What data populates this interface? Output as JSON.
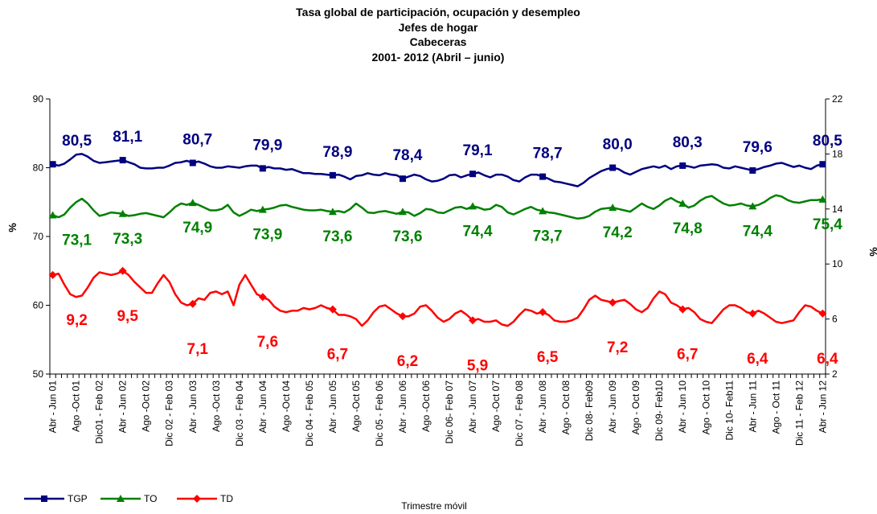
{
  "chart_data": {
    "type": "line",
    "title_lines": [
      "Tasa global de participación, ocupación y desempleo",
      "Jefes de hogar",
      "Cabeceras",
      "2001- 2012 (Abril – junio)"
    ],
    "xlabel": "Trimestre móvil",
    "ylabel": "%",
    "y2label": "%",
    "ylim": [
      50,
      90
    ],
    "yticks": [
      50,
      60,
      70,
      80,
      90
    ],
    "y2lim": [
      2,
      22
    ],
    "y2ticks": [
      2,
      6,
      10,
      14,
      18,
      22
    ],
    "grid": false,
    "legend": "bottom-left",
    "categories": [
      "Abr - Jun 01",
      null,
      null,
      null,
      "Ago -Oct 01",
      null,
      null,
      null,
      "Dic01 - Feb 02",
      null,
      null,
      null,
      "Abr - Jun 02",
      null,
      null,
      null,
      "Ago -Oct 02",
      null,
      null,
      null,
      "Dic 02 - Feb 03",
      null,
      null,
      null,
      "Abr - Jun 03",
      null,
      null,
      null,
      "Ago -Oct 03",
      null,
      null,
      null,
      "Dic 03 - Feb 04",
      null,
      null,
      null,
      "Abr - Jun 04",
      null,
      null,
      null,
      "Ago -Oct 04",
      null,
      null,
      null,
      "Dic 04 - Feb 05",
      null,
      null,
      null,
      "Abr - Jun 05",
      null,
      null,
      null,
      "Ago -Oct 05",
      null,
      null,
      null,
      "Dic 05 - Feb 06",
      null,
      null,
      null,
      "Abr - Jun 06",
      null,
      null,
      null,
      "Ago -Oct 06",
      null,
      null,
      null,
      "Dic  06- Feb 07",
      null,
      null,
      null,
      "Abr - Jun 07",
      null,
      null,
      null,
      "Ago -Oct 07",
      null,
      null,
      null,
      "Dic 07 - Feb 08",
      null,
      null,
      null,
      "Abr - Jun 08",
      null,
      null,
      null,
      "Ago - Oct 08",
      null,
      null,
      null,
      "Dic 08- Feb09",
      null,
      null,
      null,
      "Abr - Jun 09",
      null,
      null,
      null,
      "Ago - Oct 09",
      null,
      null,
      null,
      "Dic 09- Feb10",
      null,
      null,
      null,
      "Abr - Jun 10",
      null,
      null,
      null,
      "Ago - Oct 10",
      null,
      null,
      null,
      "Dic 10- Feb11",
      null,
      null,
      null,
      "Abr - Jun 11",
      null,
      null,
      null,
      "Ago - Oct 11",
      null,
      null,
      null,
      "Dic 11 - Feb 12",
      null,
      null,
      null,
      "Abr - Jun 12"
    ],
    "series": [
      {
        "name": "TGP",
        "color": "#000080",
        "marker": "square",
        "label_side": "above",
        "values": [
          80.5,
          80.3,
          80.6,
          81.2,
          81.9,
          82.0,
          81.6,
          81.0,
          80.7,
          80.8,
          80.9,
          81.0,
          81.1,
          80.8,
          80.5,
          80.0,
          79.9,
          79.9,
          80.0,
          80.0,
          80.3,
          80.7,
          80.8,
          81.0,
          80.7,
          80.9,
          80.6,
          80.2,
          80.0,
          80.0,
          80.2,
          80.1,
          80.0,
          80.2,
          80.3,
          80.3,
          79.9,
          80.1,
          79.9,
          79.9,
          79.7,
          79.8,
          79.5,
          79.2,
          79.2,
          79.1,
          79.1,
          79.0,
          78.9,
          79.0,
          78.7,
          78.3,
          78.8,
          78.9,
          79.2,
          79.0,
          78.9,
          79.2,
          79.0,
          78.9,
          78.4,
          78.7,
          79.0,
          78.8,
          78.3,
          78.0,
          78.1,
          78.4,
          78.9,
          79.0,
          78.6,
          78.9,
          79.1,
          79.3,
          78.9,
          78.6,
          79.0,
          79.0,
          78.7,
          78.2,
          78.0,
          78.6,
          79.0,
          79.0,
          78.7,
          78.4,
          78.0,
          77.9,
          77.7,
          77.5,
          77.3,
          77.8,
          78.5,
          79.0,
          79.5,
          79.8,
          80.0,
          79.8,
          79.3,
          79.0,
          79.4,
          79.8,
          80.0,
          80.2,
          80.0,
          80.3,
          79.8,
          80.2,
          80.3,
          80.2,
          80.0,
          80.3,
          80.4,
          80.5,
          80.4,
          80.0,
          79.9,
          80.2,
          80.0,
          79.8,
          79.6,
          79.8,
          80.1,
          80.3,
          80.6,
          80.7,
          80.4,
          80.1,
          80.3,
          80.0,
          79.8,
          80.3,
          80.5
        ],
        "value_labels": [
          "80,5",
          null,
          null,
          null,
          null,
          null,
          null,
          null,
          null,
          null,
          null,
          null,
          "81,1",
          null,
          null,
          null,
          null,
          null,
          null,
          null,
          null,
          null,
          null,
          null,
          "80,7",
          null,
          null,
          null,
          null,
          null,
          null,
          null,
          null,
          null,
          null,
          null,
          "79,9",
          null,
          null,
          null,
          null,
          null,
          null,
          null,
          null,
          null,
          null,
          null,
          "78,9",
          null,
          null,
          null,
          null,
          null,
          null,
          null,
          null,
          null,
          null,
          null,
          "78,4",
          null,
          null,
          null,
          null,
          null,
          null,
          null,
          null,
          null,
          null,
          null,
          "79,1",
          null,
          null,
          null,
          null,
          null,
          null,
          null,
          null,
          null,
          null,
          null,
          "78,7",
          null,
          null,
          null,
          null,
          null,
          null,
          null,
          null,
          null,
          null,
          null,
          "80,0",
          null,
          null,
          null,
          null,
          null,
          null,
          null,
          null,
          null,
          null,
          null,
          "80,3",
          null,
          null,
          null,
          null,
          null,
          null,
          null,
          null,
          null,
          null,
          null,
          "79,6",
          null,
          null,
          null,
          null,
          null,
          null,
          null,
          null,
          null,
          null,
          null,
          "80,5"
        ]
      },
      {
        "name": "TO",
        "color": "#008000",
        "marker": "triangle",
        "label_side": "below",
        "values": [
          73.1,
          72.8,
          73.2,
          74.2,
          75.0,
          75.5,
          74.8,
          73.8,
          73.0,
          73.2,
          73.5,
          73.4,
          73.3,
          73.0,
          73.1,
          73.3,
          73.4,
          73.2,
          73.0,
          72.8,
          73.5,
          74.3,
          74.8,
          74.6,
          74.9,
          74.6,
          74.2,
          73.8,
          73.8,
          74.0,
          74.6,
          73.5,
          73.0,
          73.4,
          73.9,
          73.7,
          73.9,
          74.0,
          74.2,
          74.5,
          74.6,
          74.3,
          74.1,
          73.9,
          73.8,
          73.8,
          73.9,
          73.7,
          73.6,
          73.7,
          73.5,
          74.0,
          74.8,
          74.2,
          73.5,
          73.4,
          73.6,
          73.7,
          73.5,
          73.3,
          73.6,
          73.5,
          73.0,
          73.4,
          74.0,
          73.9,
          73.5,
          73.4,
          73.8,
          74.2,
          74.3,
          74.0,
          74.4,
          74.2,
          73.9,
          74.0,
          74.6,
          74.3,
          73.5,
          73.2,
          73.6,
          74.0,
          74.3,
          73.9,
          73.7,
          73.5,
          73.4,
          73.2,
          73.0,
          72.8,
          72.6,
          72.7,
          73.0,
          73.6,
          74.0,
          74.1,
          74.2,
          74.0,
          73.8,
          73.6,
          74.2,
          74.8,
          74.3,
          74.0,
          74.5,
          75.2,
          75.6,
          75.1,
          74.8,
          74.2,
          74.5,
          75.2,
          75.7,
          75.9,
          75.3,
          74.8,
          74.5,
          74.6,
          74.8,
          74.5,
          74.4,
          74.6,
          75.0,
          75.6,
          76.0,
          75.8,
          75.3,
          75.0,
          74.9,
          75.1,
          75.3,
          75.3,
          75.4
        ],
        "value_labels": [
          "73,1",
          null,
          null,
          null,
          null,
          null,
          null,
          null,
          null,
          null,
          null,
          null,
          "73,3",
          null,
          null,
          null,
          null,
          null,
          null,
          null,
          null,
          null,
          null,
          null,
          "74,9",
          null,
          null,
          null,
          null,
          null,
          null,
          null,
          null,
          null,
          null,
          null,
          "73,9",
          null,
          null,
          null,
          null,
          null,
          null,
          null,
          null,
          null,
          null,
          null,
          "73,6",
          null,
          null,
          null,
          null,
          null,
          null,
          null,
          null,
          null,
          null,
          null,
          "73,6",
          null,
          null,
          null,
          null,
          null,
          null,
          null,
          null,
          null,
          null,
          null,
          "74,4",
          null,
          null,
          null,
          null,
          null,
          null,
          null,
          null,
          null,
          null,
          null,
          "73,7",
          null,
          null,
          null,
          null,
          null,
          null,
          null,
          null,
          null,
          null,
          null,
          "74,2",
          null,
          null,
          null,
          null,
          null,
          null,
          null,
          null,
          null,
          null,
          null,
          "74,8",
          null,
          null,
          null,
          null,
          null,
          null,
          null,
          null,
          null,
          null,
          null,
          "74,4",
          null,
          null,
          null,
          null,
          null,
          null,
          null,
          null,
          null,
          null,
          null,
          "75,4"
        ]
      },
      {
        "name": "TD",
        "color": "#ff0000",
        "marker": "diamond",
        "axis": "y2",
        "label_side": "far-below",
        "values": [
          9.2,
          9.3,
          8.5,
          7.8,
          7.6,
          7.7,
          8.3,
          9.0,
          9.4,
          9.3,
          9.2,
          9.3,
          9.5,
          9.2,
          8.7,
          8.3,
          7.9,
          7.9,
          8.6,
          9.2,
          8.7,
          7.8,
          7.2,
          7.0,
          7.1,
          7.5,
          7.4,
          7.9,
          8.0,
          7.8,
          8.0,
          7.0,
          8.5,
          9.2,
          8.5,
          7.8,
          7.6,
          7.4,
          6.9,
          6.6,
          6.5,
          6.6,
          6.6,
          6.8,
          6.7,
          6.8,
          7.0,
          6.8,
          6.7,
          6.3,
          6.3,
          6.2,
          6.0,
          5.5,
          5.9,
          6.5,
          6.9,
          7.0,
          6.7,
          6.4,
          6.2,
          6.2,
          6.4,
          6.9,
          7.0,
          6.6,
          6.1,
          5.8,
          6.0,
          6.4,
          6.6,
          6.3,
          5.9,
          6.0,
          5.8,
          5.8,
          5.9,
          5.6,
          5.5,
          5.8,
          6.3,
          6.7,
          6.6,
          6.4,
          6.5,
          6.3,
          5.9,
          5.8,
          5.8,
          5.9,
          6.1,
          6.7,
          7.4,
          7.7,
          7.4,
          7.3,
          7.2,
          7.3,
          7.4,
          7.1,
          6.7,
          6.5,
          6.8,
          7.5,
          8.0,
          7.8,
          7.2,
          7.0,
          6.7,
          6.8,
          6.5,
          6.0,
          5.8,
          5.7,
          6.2,
          6.7,
          7.0,
          7.0,
          6.8,
          6.5,
          6.4,
          6.6,
          6.4,
          6.1,
          5.8,
          5.7,
          5.8,
          5.9,
          6.5,
          7.0,
          6.9,
          6.6,
          6.4
        ],
        "value_labels": [
          "9,2",
          null,
          null,
          null,
          null,
          null,
          null,
          null,
          null,
          null,
          null,
          null,
          "9,5",
          null,
          null,
          null,
          null,
          null,
          null,
          null,
          null,
          null,
          null,
          null,
          "7,1",
          null,
          null,
          null,
          null,
          null,
          null,
          null,
          null,
          null,
          null,
          null,
          "7,6",
          null,
          null,
          null,
          null,
          null,
          null,
          null,
          null,
          null,
          null,
          null,
          "6,7",
          null,
          null,
          null,
          null,
          null,
          null,
          null,
          null,
          null,
          null,
          null,
          "6,2",
          null,
          null,
          null,
          null,
          null,
          null,
          null,
          null,
          null,
          null,
          null,
          "5,9",
          null,
          null,
          null,
          null,
          null,
          null,
          null,
          null,
          null,
          null,
          null,
          "6,5",
          null,
          null,
          null,
          null,
          null,
          null,
          null,
          null,
          null,
          null,
          null,
          "7,2",
          null,
          null,
          null,
          null,
          null,
          null,
          null,
          null,
          null,
          null,
          null,
          "6,7",
          null,
          null,
          null,
          null,
          null,
          null,
          null,
          null,
          null,
          null,
          null,
          "6,4",
          null,
          null,
          null,
          null,
          null,
          null,
          null,
          null,
          null,
          null,
          null,
          "6,4"
        ]
      }
    ]
  }
}
